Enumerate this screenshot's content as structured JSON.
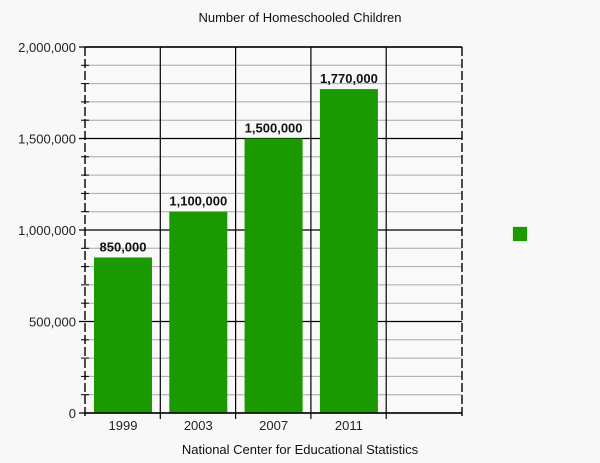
{
  "chart_data": {
    "type": "bar",
    "title": "Number of Homeschooled Children",
    "xlabel": "National Center for Educational Statistics",
    "ylabel": "",
    "categories": [
      "1999",
      "2003",
      "2007",
      "2011"
    ],
    "values": [
      850000,
      1100000,
      1500000,
      1770000
    ],
    "data_labels": [
      "850,000",
      "1,100,000",
      "1,500,000",
      "1,770,000"
    ],
    "ylim": [
      0,
      2000000
    ],
    "yticks": [
      0,
      500000,
      1000000,
      1500000,
      2000000
    ],
    "ytick_labels": [
      "0",
      "500,000",
      "1,000,000",
      "1,500,000",
      "2,000,000"
    ],
    "minor_tick_step": 100000,
    "grid": true,
    "legend": {
      "position": "right",
      "entries": [
        ""
      ]
    },
    "bar_color": "#1a9a00"
  }
}
